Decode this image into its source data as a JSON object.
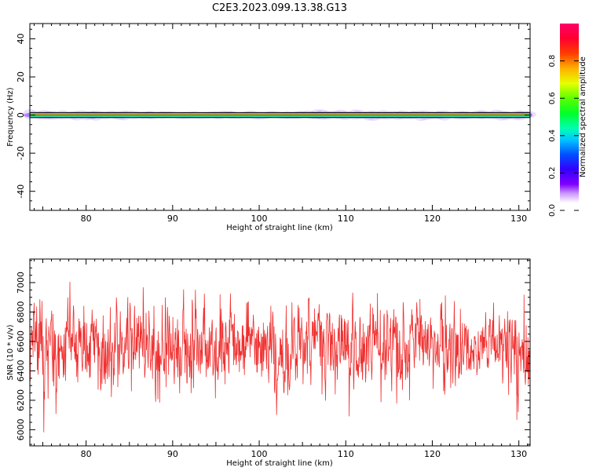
{
  "title": "C2E3.2023.099.13.38.G13",
  "chart_data": [
    {
      "type": "heatmap",
      "xlabel": "Height of straight line (km)",
      "ylabel": "Frequency (Hz)",
      "xlim": [
        73.5,
        131.3
      ],
      "ylim": [
        -50,
        48
      ],
      "xticks": [
        80,
        90,
        100,
        110,
        120,
        130
      ],
      "yticks": [
        -40,
        -20,
        0,
        20,
        40
      ],
      "band_center_hz": 0,
      "band_halfwidth_hz": 1.3,
      "colorbar": {
        "label": "Normalized spectral amplitude",
        "ticks": [
          "0.0",
          "0.2",
          "0.4",
          "0.6",
          "0.8"
        ],
        "tick_values": [
          0,
          0.2,
          0.4,
          0.6,
          0.8
        ],
        "range": [
          0,
          1
        ],
        "colormap": "hsv-inverted"
      }
    },
    {
      "type": "line",
      "xlabel": "Height of straight line (km)",
      "ylabel": "SNR (10 * v/v)",
      "xlim": [
        73.5,
        131.3
      ],
      "ylim": [
        5890,
        7160
      ],
      "xticks": [
        80,
        90,
        100,
        110,
        120,
        130
      ],
      "yticks": [
        6000,
        6200,
        6400,
        6600,
        6800,
        7000
      ],
      "series": [
        {
          "color": "#f03030",
          "mean": 6560,
          "std": 170,
          "num_points": 1400,
          "seed": 13
        }
      ]
    }
  ]
}
